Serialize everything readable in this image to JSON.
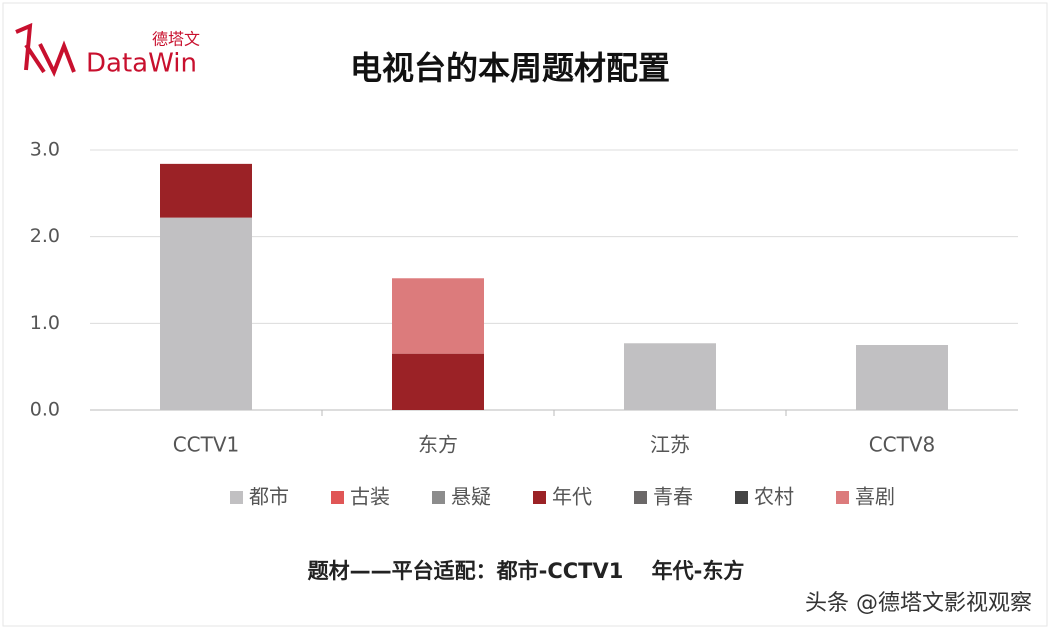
{
  "logo": {
    "brand": "DataWin",
    "brand_cn": "德塔文"
  },
  "chart_data": {
    "type": "stacked_bar",
    "title": "电视台的本周题材配置",
    "categories": [
      "CCTV1",
      "东方",
      "江苏",
      "CCTV8"
    ],
    "series": [
      {
        "name": "都市",
        "color": "#c1c0c2",
        "values": [
          2.22,
          0,
          0.77,
          0.75
        ]
      },
      {
        "name": "古装",
        "color": "#e05656",
        "values": [
          0,
          0,
          0,
          0
        ]
      },
      {
        "name": "悬疑",
        "color": "#8c8c8c",
        "values": [
          0,
          0,
          0,
          0
        ]
      },
      {
        "name": "年代",
        "color": "#9b2226",
        "values": [
          0.62,
          0.65,
          0,
          0
        ]
      },
      {
        "name": "青春",
        "color": "#6b6868",
        "values": [
          0,
          0,
          0,
          0
        ]
      },
      {
        "name": "农村",
        "color": "#444444",
        "values": [
          0,
          0,
          0,
          0
        ]
      },
      {
        "name": "喜剧",
        "color": "#dc7b7c",
        "values": [
          0,
          0.87,
          0,
          0
        ]
      }
    ],
    "ylim": [
      0,
      3
    ],
    "yticks": [
      {
        "value": 0,
        "label": "0.0"
      },
      {
        "value": 1,
        "label": "1.0"
      },
      {
        "value": 2,
        "label": "2.0"
      },
      {
        "value": 3,
        "label": "3.0"
      }
    ],
    "grid": true
  },
  "caption": "题材——平台适配：都市-CCTV1　 年代-东方",
  "watermark": "头条 @德塔文影视观察"
}
